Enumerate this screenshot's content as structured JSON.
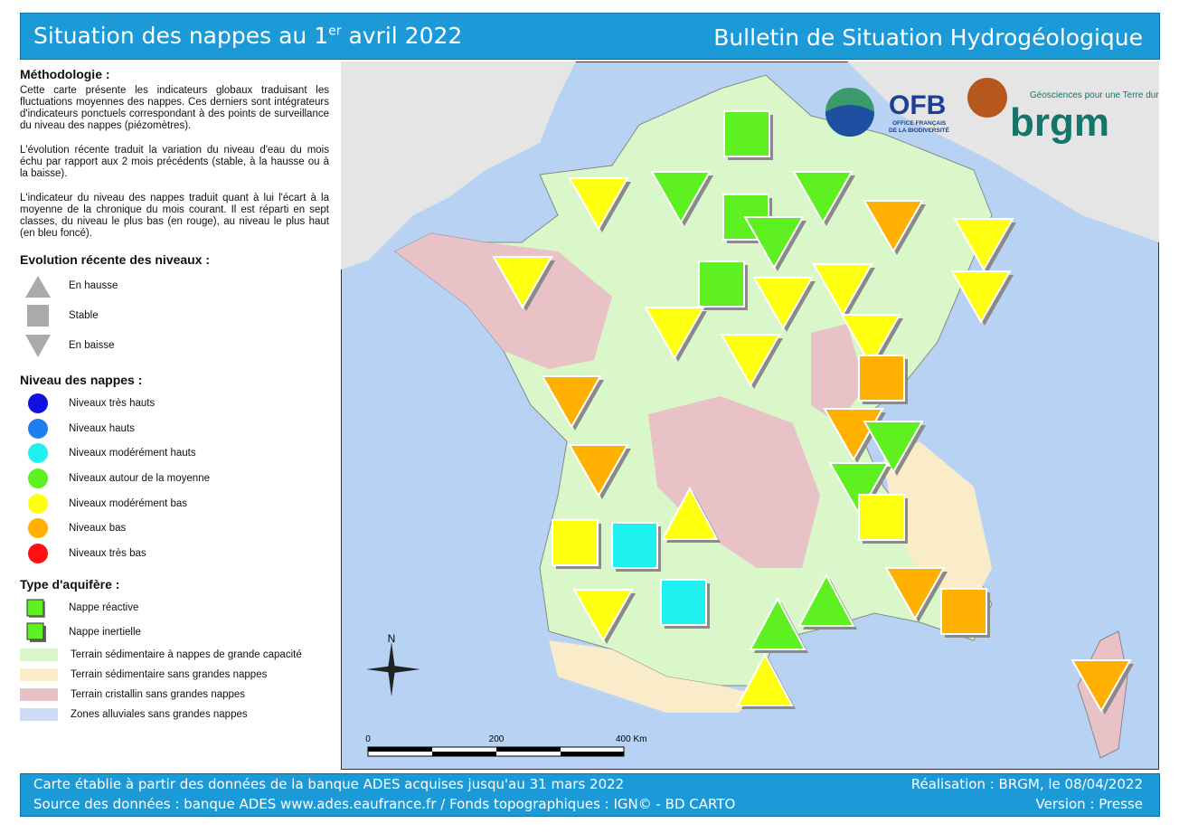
{
  "header": {
    "title": "Situation des nappes au 1",
    "title_sup": "er",
    "title_end": "avril 2022",
    "right_title": "Bulletin de Situation Hydrogéologique"
  },
  "methodology": {
    "heading": "Méthodologie :",
    "paragraphs": [
      "Cette carte présente les indicateurs globaux traduisant les fluctuations moyennes des nappes. Ces derniers sont intégrateurs d'indicateurs ponctuels correspondant à des points de surveillance du niveau des nappes (piézomètres).",
      "L'évolution récente traduit la variation du niveau d'eau du mois échu par rapport aux 2 mois précédents (stable, à la hausse ou à la baisse).",
      "L'indicateur du niveau des nappes traduit quant à lui l'écart à la moyenne de la chronique du mois courant. Il est réparti en sept classes, du niveau le plus bas (en rouge), au niveau le plus haut (en bleu foncé)."
    ]
  },
  "legend": {
    "evolution": {
      "heading": "Evolution récente des niveaux :",
      "items": [
        "En hausse",
        "Stable",
        "En baisse"
      ]
    },
    "levels": {
      "heading": "Niveau des nappes :",
      "items": [
        "Niveaux très hauts",
        "Niveaux hauts",
        "Niveaux modérément hauts",
        "Niveaux autour de la moyenne",
        "Niveaux modérément bas",
        "Niveaux bas",
        "Niveaux très bas"
      ]
    },
    "aquifer": {
      "heading": "Type d'aquifère :",
      "items": [
        "Nappe réactive",
        "Nappe inertielle"
      ]
    },
    "terrain": [
      "Terrain sédimentaire à nappes de grande capacité",
      "Terrain sédimentaire sans grandes nappes",
      "Terrain cristallin sans grandes nappes",
      "Zones alluviales sans grandes nappes"
    ]
  },
  "logos": {
    "ofb": "OFB",
    "ofb_sub1": "OFFICE FRANÇAIS",
    "ofb_sub2": "DE LA BIODIVERSITÉ",
    "brgm_tagline": "Géosciences pour une Terre durable",
    "brgm": "brgm"
  },
  "north": "N",
  "scale": {
    "labels": [
      "0",
      "200",
      "400 Km"
    ]
  },
  "footer": {
    "left": [
      "Carte établie à partir des données de la banque ADES acquises jusqu'au 31 mars 2022",
      "Source des données : banque ADES www.ades.eaufrance.fr / Fonds topographiques : IGN© - BD CARTO"
    ],
    "right": [
      "Réalisation : BRGM, le 08/04/2022",
      "Version : Presse"
    ]
  }
}
